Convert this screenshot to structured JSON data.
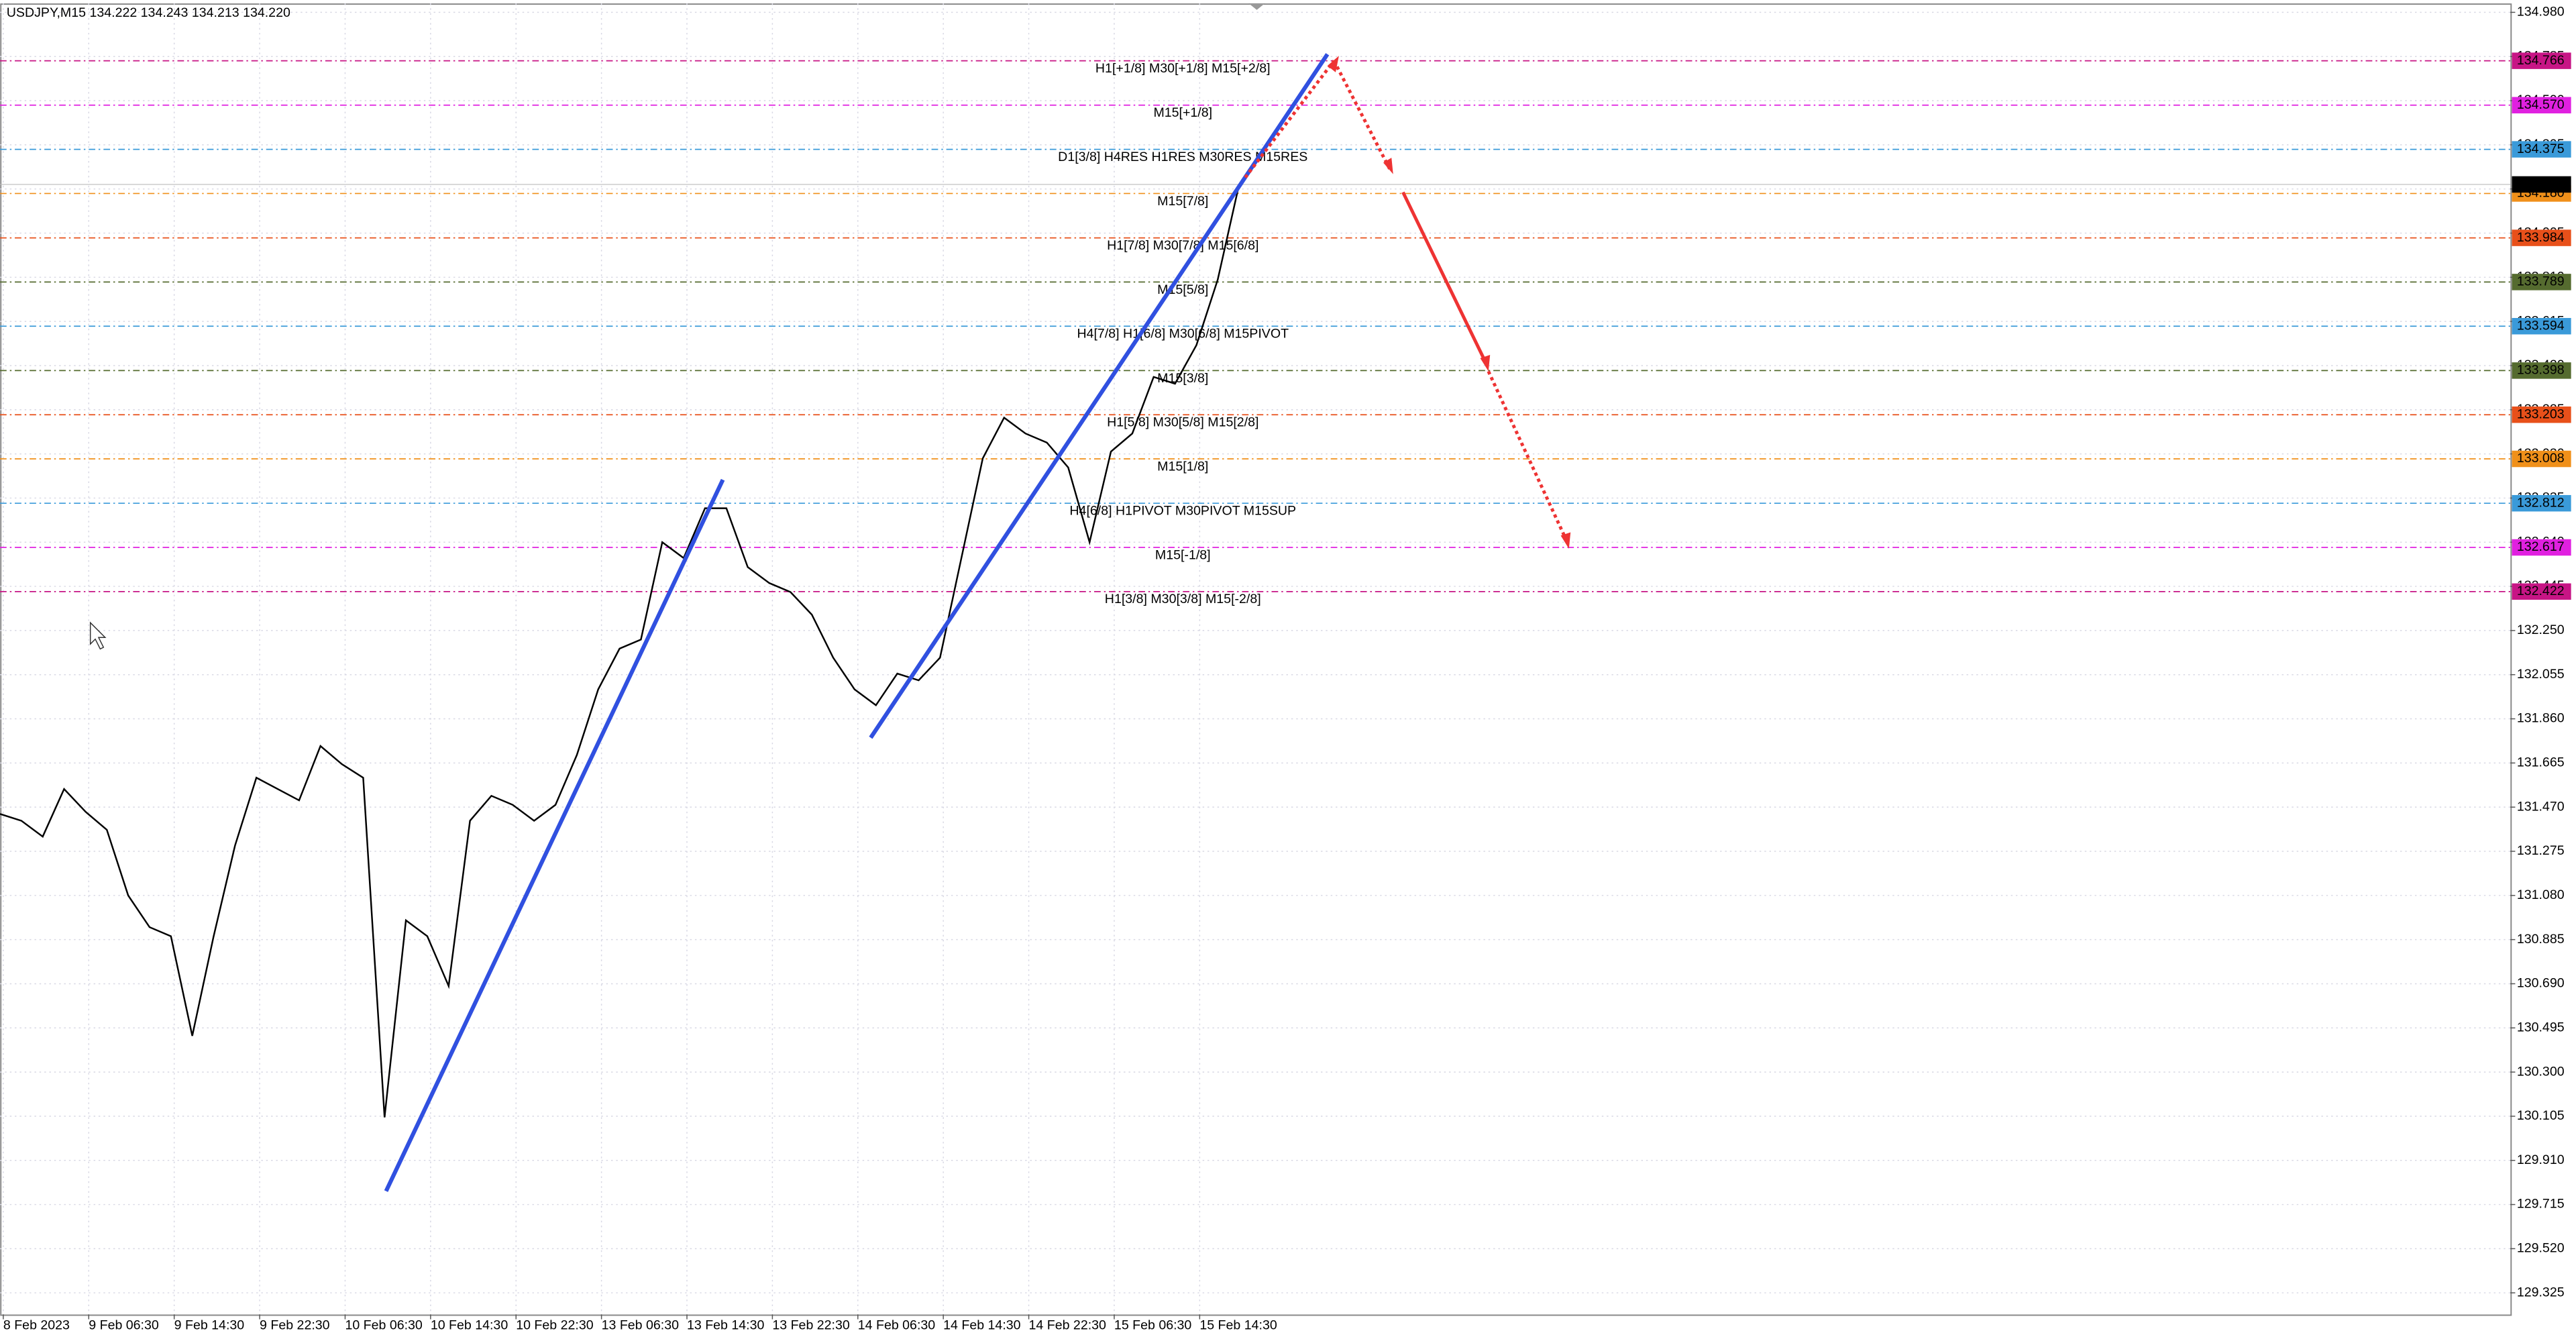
{
  "chart_data": {
    "type": "line",
    "title": "USDJPY,M15  134.222 134.243 134.213 134.220",
    "series": [
      {
        "name": "USDJPY",
        "color": "#000000",
        "values": [
          131.44,
          131.41,
          131.34,
          131.55,
          131.45,
          131.37,
          131.08,
          130.94,
          130.9,
          130.46,
          130.9,
          131.3,
          131.6,
          131.55,
          131.5,
          131.74,
          131.66,
          131.6,
          130.1,
          130.97,
          130.9,
          130.68,
          131.41,
          131.52,
          131.48,
          131.41,
          131.48,
          131.7,
          131.99,
          132.17,
          132.21,
          132.64,
          132.57,
          132.79,
          132.79,
          132.53,
          132.46,
          132.42,
          132.32,
          132.13,
          131.99,
          131.92,
          132.06,
          132.03,
          132.13,
          132.57,
          133.01,
          133.19,
          133.12,
          133.08,
          132.97,
          132.64,
          133.04,
          133.12,
          133.37,
          133.34,
          133.51,
          133.8,
          134.22
        ]
      }
    ],
    "current_price": {
      "value": 134.22,
      "label": "134.220"
    },
    "levels": {
      "names": [
        "H1[+1/8] M30[+1/8] M15[+2/8]",
        "M15[+1/8]",
        "D1[3/8] H4RES H1RES M30RES M15RES",
        "M15[7/8]",
        "H1[7/8] M30[7/8] M15[6/8]",
        "M15[5/8]",
        "H4[7/8] H1[6/8] M30[6/8] M15PIVOT",
        "M15[3/8]",
        "H1[5/8] M30[5/8] M15[2/8]",
        "M15[1/8]",
        "H4[6/8] H1PIVOT M30PIVOT M15SUP",
        "M15[-1/8]",
        "H1[3/8] M30[3/8] M15[-2/8]"
      ],
      "values": [
        134.766,
        134.57,
        134.375,
        134.18,
        133.984,
        133.789,
        133.594,
        133.398,
        133.203,
        133.008,
        132.812,
        132.617,
        132.422
      ],
      "value_labels": [
        "134.766",
        "134.570",
        "134.375",
        "134.180",
        "133.984",
        "133.789",
        "133.594",
        "133.398",
        "133.203",
        "133.008",
        "132.812",
        "132.617",
        "132.422"
      ],
      "colors": [
        "#c71585",
        "#e020e0",
        "#3a9ad9",
        "#f0901a",
        "#e8501a",
        "#556b2f",
        "#3a9ad9",
        "#556b2f",
        "#e8501a",
        "#f0901a",
        "#3a9ad9",
        "#e020e0",
        "#c71585"
      ]
    },
    "xlim": [
      0,
      117.5
    ],
    "xticks": [
      {
        "value": 0,
        "label": "8 Feb 2023"
      },
      {
        "value": 4,
        "label": "9 Feb 06:30"
      },
      {
        "value": 8,
        "label": "9 Feb 14:30"
      },
      {
        "value": 12,
        "label": "9 Feb 22:30"
      },
      {
        "value": 16,
        "label": "10 Feb 06:30"
      },
      {
        "value": 20,
        "label": "10 Feb 14:30"
      },
      {
        "value": 24,
        "label": "10 Feb 22:30"
      },
      {
        "value": 28,
        "label": "13 Feb 06:30"
      },
      {
        "value": 32,
        "label": "13 Feb 14:30"
      },
      {
        "value": 36,
        "label": "13 Feb 22:30"
      },
      {
        "value": 40,
        "label": "14 Feb 06:30"
      },
      {
        "value": 44,
        "label": "14 Feb 14:30"
      },
      {
        "value": 48,
        "label": "14 Feb 22:30"
      },
      {
        "value": 52,
        "label": "15 Feb 06:30"
      },
      {
        "value": 56,
        "label": "15 Feb 14:30"
      }
    ],
    "ylim": [
      129.23,
      135.02
    ],
    "yticks": [
      {
        "value": 134.98,
        "label": "134.980"
      },
      {
        "value": 134.785,
        "label": "134.785"
      },
      {
        "value": 134.59,
        "label": "134.590"
      },
      {
        "value": 134.395,
        "label": "134.395"
      },
      {
        "value": 134.2,
        "label": "134.200"
      },
      {
        "value": 134.005,
        "label": "134.005"
      },
      {
        "value": 133.81,
        "label": "133.810"
      },
      {
        "value": 133.615,
        "label": "133.615"
      },
      {
        "value": 133.42,
        "label": "133.420"
      },
      {
        "value": 133.225,
        "label": "133.225"
      },
      {
        "value": 133.03,
        "label": "133.030"
      },
      {
        "value": 132.835,
        "label": "132.835"
      },
      {
        "value": 132.64,
        "label": "132.640"
      },
      {
        "value": 132.445,
        "label": "132.445"
      },
      {
        "value": 132.25,
        "label": "132.250"
      },
      {
        "value": 132.055,
        "label": "132.055"
      },
      {
        "value": 131.86,
        "label": "131.860"
      },
      {
        "value": 131.665,
        "label": "131.665"
      },
      {
        "value": 131.47,
        "label": "131.470"
      },
      {
        "value": 131.275,
        "label": "131.275"
      },
      {
        "value": 131.08,
        "label": "131.080"
      },
      {
        "value": 130.885,
        "label": "130.885"
      },
      {
        "value": 130.69,
        "label": "130.690"
      },
      {
        "value": 130.495,
        "label": "130.495"
      },
      {
        "value": 130.3,
        "label": "130.300"
      },
      {
        "value": 130.105,
        "label": "130.105"
      },
      {
        "value": 129.91,
        "label": "129.910"
      },
      {
        "value": 129.715,
        "label": "129.715"
      },
      {
        "value": 129.52,
        "label": "129.520"
      },
      {
        "value": 129.325,
        "label": "129.325"
      }
    ],
    "grid": true
  }
}
